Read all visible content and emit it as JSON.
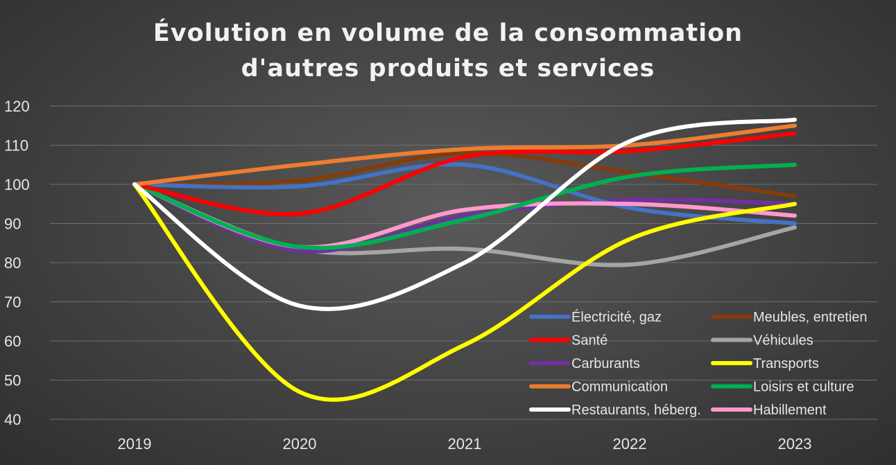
{
  "chart_data": {
    "type": "line",
    "title_lines": [
      "Évolution en volume de la consommation",
      "d'autres produits et services"
    ],
    "xlabel": "",
    "ylabel": "",
    "categories": [
      "2019",
      "2020",
      "2021",
      "2022",
      "2023"
    ],
    "ylim": [
      40,
      120
    ],
    "yticks": [
      40,
      50,
      60,
      70,
      80,
      90,
      100,
      110,
      120
    ],
    "grid": true,
    "legend_position": "bottom-right",
    "series": [
      {
        "name": "Meubles, entretien",
        "color": "#843C0C",
        "values": [
          100,
          101,
          108,
          103,
          97
        ]
      },
      {
        "name": "Véhicules",
        "color": "#A5A5A5",
        "values": [
          100,
          83.5,
          83.5,
          79.5,
          89
        ]
      },
      {
        "name": "Carburants",
        "color": "#7030A0",
        "values": [
          100,
          83,
          92,
          96,
          95
        ]
      },
      {
        "name": "Électricité, gaz",
        "color": "#4472C4",
        "values": [
          100,
          99.5,
          105,
          94,
          90
        ]
      },
      {
        "name": "Habillement",
        "color": "#FF99CC",
        "values": [
          100,
          84,
          93.5,
          95,
          92
        ]
      },
      {
        "name": "Loisirs et culture",
        "color": "#00B050",
        "values": [
          100,
          84,
          91,
          102,
          105
        ]
      },
      {
        "name": "Santé",
        "color": "#FF0000",
        "values": [
          100,
          92.5,
          107,
          108.5,
          113
        ]
      },
      {
        "name": "Communication",
        "color": "#ED7D31",
        "values": [
          100,
          105,
          109,
          110,
          115
        ]
      },
      {
        "name": "Transports",
        "color": "#FFFF00",
        "values": [
          100,
          47,
          59,
          86,
          95
        ]
      },
      {
        "name": "Restaurants, héberg.",
        "color": "#FFFFFF",
        "values": [
          100,
          69,
          80,
          111,
          116.5
        ]
      }
    ],
    "legend": [
      {
        "name": "Électricité, gaz",
        "color": "#4472C4"
      },
      {
        "name": "Meubles, entretien",
        "color": "#843C0C"
      },
      {
        "name": "Santé",
        "color": "#FF0000"
      },
      {
        "name": "Véhicules",
        "color": "#A5A5A5"
      },
      {
        "name": "Carburants",
        "color": "#7030A0"
      },
      {
        "name": "Transports",
        "color": "#FFFF00"
      },
      {
        "name": "Communication",
        "color": "#ED7D31"
      },
      {
        "name": "Loisirs et culture",
        "color": "#00B050"
      },
      {
        "name": "Restaurants, héberg.",
        "color": "#FFFFFF"
      },
      {
        "name": "Habillement",
        "color": "#FF99CC"
      }
    ]
  }
}
